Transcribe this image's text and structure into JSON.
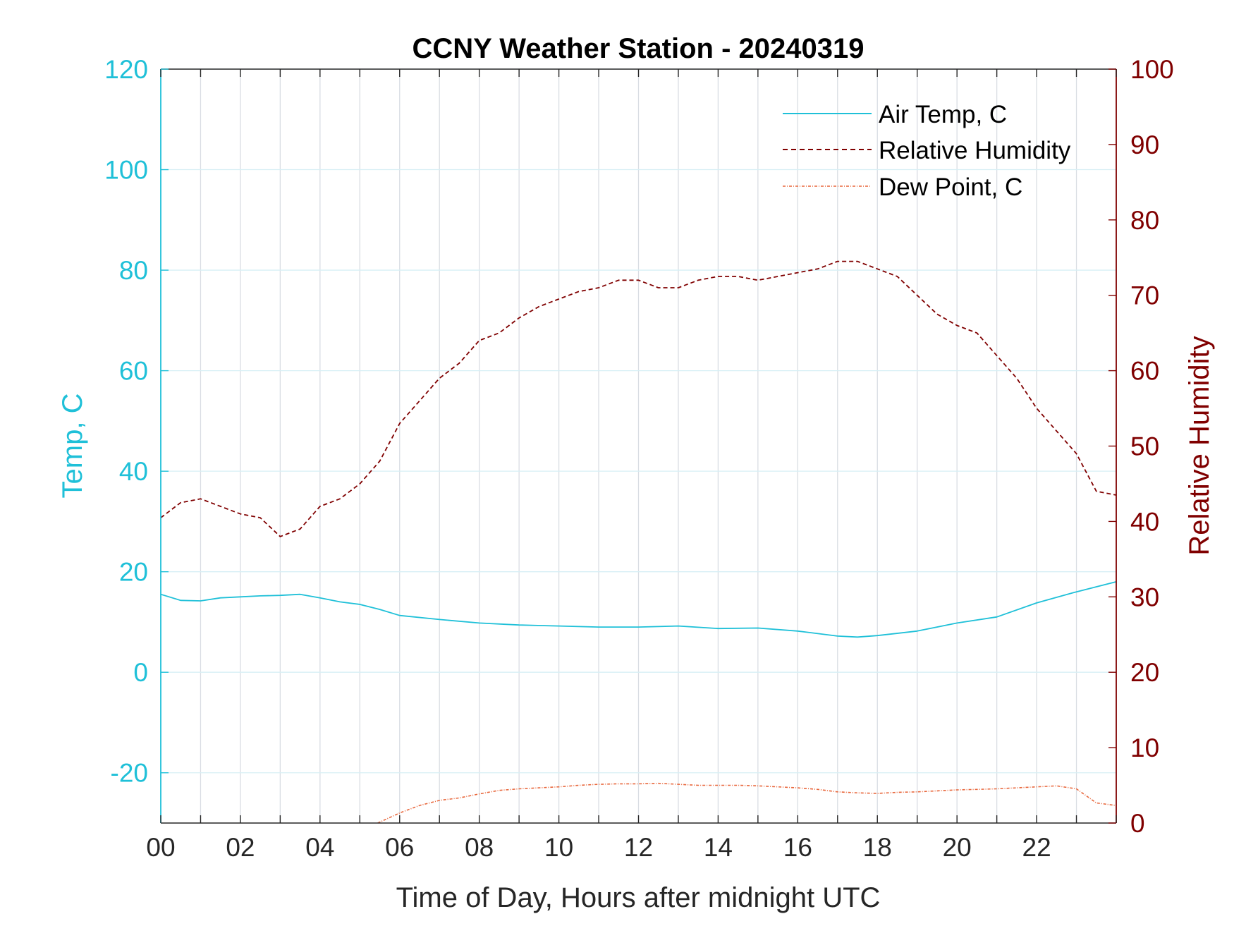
{
  "chart_data": {
    "type": "line",
    "title": "CCNY Weather Station - 20240319",
    "xlabel": "Time of Day, Hours after midnight UTC",
    "ylabel_left": "Temp, C",
    "ylabel_right": "Relative Humidity",
    "xlim": [
      0,
      24
    ],
    "ylim_left": [
      -30,
      120
    ],
    "ylim_right": [
      0,
      100
    ],
    "x_ticks": [
      0,
      2,
      4,
      6,
      8,
      10,
      12,
      14,
      16,
      18,
      20,
      22
    ],
    "x_tick_labels": [
      "00",
      "02",
      "04",
      "06",
      "08",
      "10",
      "12",
      "14",
      "16",
      "18",
      "20",
      "22"
    ],
    "y_left_ticks": [
      -20,
      0,
      20,
      40,
      60,
      80,
      100,
      120
    ],
    "y_left_tick_labels": [
      "-20",
      "0",
      "20",
      "40",
      "60",
      "80",
      "100",
      "120"
    ],
    "y_right_ticks": [
      0,
      10,
      20,
      30,
      40,
      50,
      60,
      70,
      80,
      90,
      100
    ],
    "y_right_tick_labels": [
      "0",
      "10",
      "20",
      "30",
      "40",
      "50",
      "60",
      "70",
      "80",
      "90",
      "100"
    ],
    "grid": true,
    "legend_position": "top-right",
    "colors": {
      "air_temp": "#1fc0d8",
      "humidity": "#800000",
      "dew_point": "#e8673c",
      "grid": "#d9dde3",
      "axis": "#262626"
    },
    "series": [
      {
        "name": "Air Temp, C",
        "axis": "left",
        "style": "solid",
        "x": [
          0,
          0.5,
          1,
          1.5,
          2,
          2.5,
          3,
          3.5,
          4,
          4.5,
          5,
          5.5,
          6,
          7,
          8,
          9,
          10,
          11,
          12,
          13,
          14,
          15,
          16,
          17,
          17.5,
          18,
          19,
          20,
          21,
          22,
          23,
          24
        ],
        "values": [
          15.5,
          14.3,
          14.2,
          14.8,
          15,
          15.2,
          15.3,
          15.5,
          14.8,
          14,
          13.5,
          12.5,
          11.3,
          10.5,
          9.8,
          9.4,
          9.2,
          9,
          9,
          9.2,
          8.7,
          8.8,
          8.2,
          7.2,
          7,
          7.3,
          8.2,
          9.8,
          11,
          13.8,
          16,
          18
        ]
      },
      {
        "name": "Relative Humidity",
        "axis": "right",
        "style": "dashed",
        "x": [
          0,
          0.5,
          1,
          1.5,
          2,
          2.5,
          3,
          3.5,
          4,
          4.5,
          5,
          5.5,
          6,
          6.5,
          7,
          7.5,
          8,
          8.5,
          9,
          9.5,
          10,
          10.5,
          11,
          11.5,
          12,
          12.5,
          13,
          13.5,
          14,
          14.5,
          15,
          15.5,
          16,
          16.5,
          17,
          17.5,
          18,
          18.5,
          19,
          19.5,
          20,
          20.5,
          21,
          21.5,
          22,
          22.5,
          23,
          23.5,
          24
        ],
        "values": [
          40.5,
          42.5,
          43,
          42,
          41,
          40.5,
          38,
          39,
          42,
          43,
          45,
          48,
          53,
          56,
          59,
          61,
          64,
          65,
          67,
          68.5,
          69.5,
          70.5,
          71,
          72,
          72,
          71,
          71,
          72,
          72.5,
          72.5,
          72,
          72.5,
          73,
          73.5,
          74.5,
          74.5,
          73.5,
          72.5,
          70,
          67.5,
          66,
          65,
          62,
          59,
          55,
          52,
          49,
          44,
          43.5
        ]
      },
      {
        "name": "Dew Point, C",
        "axis": "left",
        "style": "dashdot",
        "x": [
          5.45,
          6,
          6.5,
          7,
          7.5,
          8,
          8.5,
          9,
          9.5,
          10,
          10.5,
          11,
          11.5,
          12,
          12.5,
          13,
          13.5,
          14,
          14.5,
          15,
          15.5,
          16,
          16.5,
          17,
          17.5,
          18,
          18.5,
          19,
          19.5,
          20,
          20.5,
          21,
          21.5,
          22,
          22.5,
          23,
          23.5,
          24
        ],
        "values": [
          -30,
          -28,
          -26.5,
          -25.5,
          -25,
          -24.2,
          -23.5,
          -23.2,
          -23,
          -22.8,
          -22.5,
          -22.3,
          -22.2,
          -22.2,
          -22.1,
          -22.3,
          -22.5,
          -22.5,
          -22.5,
          -22.6,
          -22.8,
          -23,
          -23.3,
          -23.8,
          -24,
          -24.1,
          -23.9,
          -23.8,
          -23.6,
          -23.4,
          -23.3,
          -23.2,
          -23,
          -22.8,
          -22.6,
          -23.2,
          -26,
          -26.5
        ]
      }
    ]
  }
}
